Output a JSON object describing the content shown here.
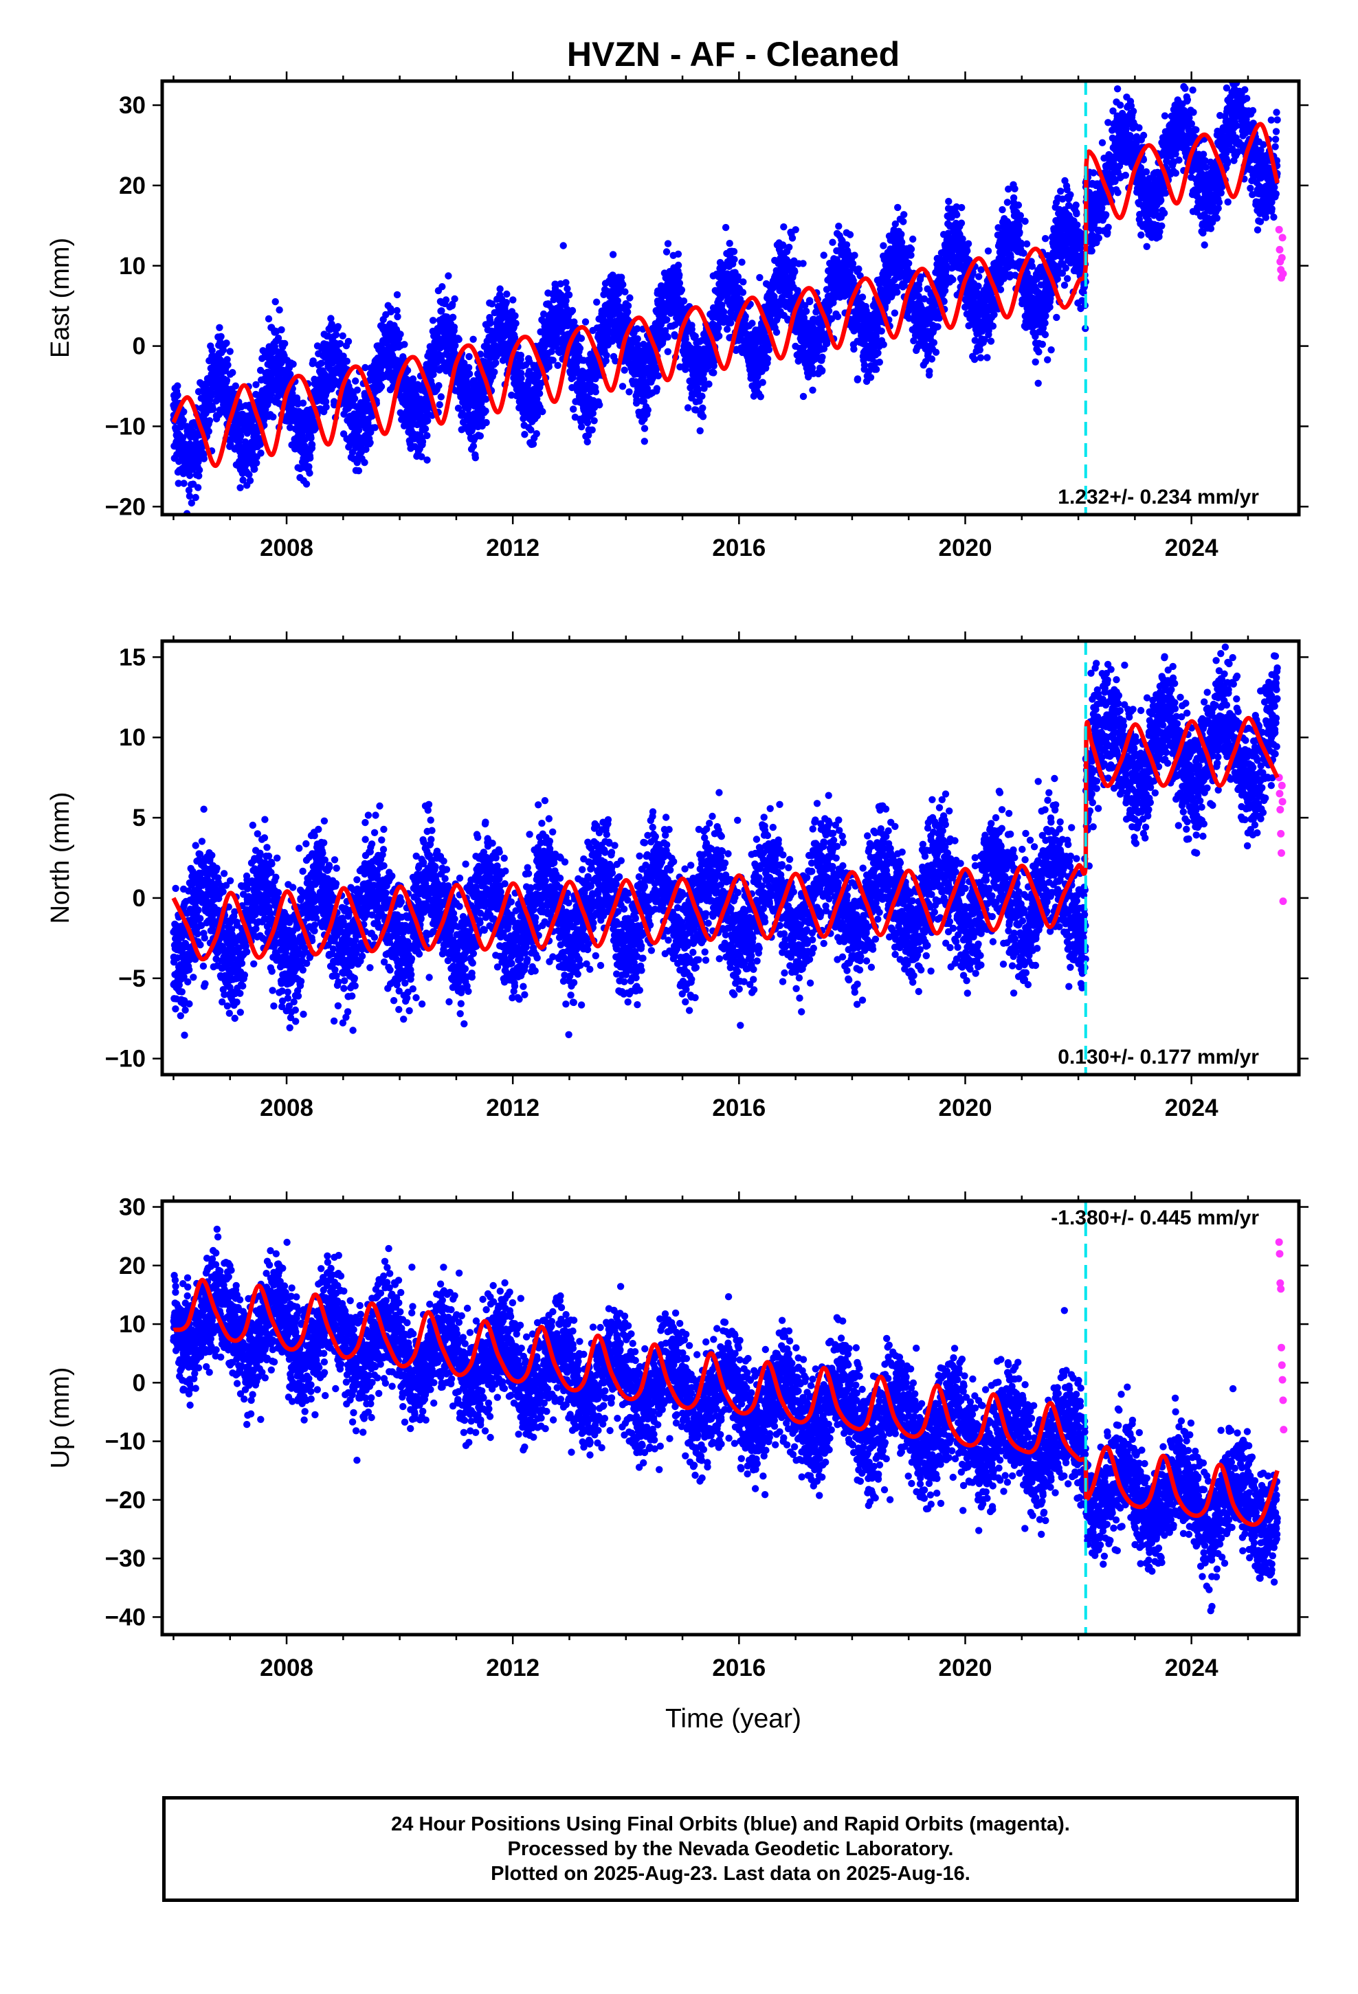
{
  "title": "HVZN  - AF - Cleaned",
  "xlabel": "Time (year)",
  "colors": {
    "final": "#0000ff",
    "rapid": "#ff33ff",
    "model": "#ff0000",
    "offset": "#00e5ee",
    "frame": "#000000"
  },
  "footer": {
    "line1": "24 Hour Positions Using Final Orbits (blue) and Rapid Orbits (magenta).",
    "line2": "Processed by the Nevada Geodetic Laboratory.",
    "line3": "Plotted on 2025-Aug-23. Last data on 2025-Aug-16."
  },
  "chart_data": [
    {
      "type": "scatter",
      "ylabel": "East (mm)",
      "rate_label": "1.232+/- 0.234 mm/yr",
      "xlim": [
        2005.8,
        2025.9
      ],
      "ylim": [
        -21,
        33
      ],
      "x_ticks": [
        2008,
        2012,
        2016,
        2020,
        2024
      ],
      "x_minor_ticks": [
        2006,
        2007,
        2008,
        2009,
        2010,
        2011,
        2012,
        2013,
        2014,
        2015,
        2016,
        2017,
        2018,
        2019,
        2020,
        2021,
        2022,
        2023,
        2024,
        2025
      ],
      "y_ticks": [
        -20,
        -10,
        0,
        10,
        20,
        30
      ],
      "offset_epoch": 2022.13,
      "series": [
        {
          "name": "Final Orbits (blue)",
          "kind": "points",
          "color": "#0000ff",
          "trend": {
            "start": 2006.0,
            "end": 2025.52,
            "value_at_2006": -9.5,
            "rate": 1.232,
            "annual_amp": 5.0,
            "phase": 0.55,
            "scatter": 2.6,
            "jump_epoch": 2022.13,
            "jump": 10.5
          }
        },
        {
          "name": "Rapid Orbits (magenta)",
          "kind": "points",
          "color": "#ff33ff",
          "x": [
            2025.55,
            2025.56,
            2025.57,
            2025.58,
            2025.59,
            2025.6,
            2025.61,
            2025.62
          ],
          "y": [
            14.5,
            12.0,
            10.5,
            9.5,
            8.5,
            11.0,
            13.5,
            9.0
          ]
        },
        {
          "name": "Model",
          "kind": "line",
          "color": "#ff0000",
          "x": [
            2006.0,
            2006.25,
            2006.5,
            2006.75,
            2007.0,
            2007.25,
            2007.5,
            2007.75,
            2008.0,
            2008.25,
            2008.5,
            2008.75,
            2009.0,
            2009.25,
            2009.5,
            2009.75,
            2010.0,
            2010.25,
            2010.5,
            2010.75,
            2011.0,
            2011.25,
            2011.5,
            2011.75,
            2012.0,
            2012.25,
            2012.5,
            2012.75,
            2013.0,
            2013.25,
            2013.5,
            2013.75,
            2014.0,
            2014.25,
            2014.5,
            2014.75,
            2015.0,
            2015.25,
            2015.5,
            2015.75,
            2016.0,
            2016.25,
            2016.5,
            2016.75,
            2017.0,
            2017.25,
            2017.5,
            2017.75,
            2018.0,
            2018.25,
            2018.5,
            2018.75,
            2019.0,
            2019.25,
            2019.5,
            2019.75,
            2020.0,
            2020.25,
            2020.5,
            2020.75,
            2021.0,
            2021.25,
            2021.5,
            2021.75,
            2022.0,
            2022.13,
            2022.14,
            2022.25,
            2022.5,
            2022.75,
            2023.0,
            2023.25,
            2023.5,
            2023.75,
            2024.0,
            2024.25,
            2024.5,
            2024.75,
            2025.0,
            2025.25,
            2025.52
          ],
          "y": [
            -9.5,
            -6.4,
            -10.5,
            -14.9,
            -9.2,
            -4.9,
            -9.1,
            -13.5,
            -5.9,
            -3.8,
            -7.8,
            -12.2,
            -4.9,
            -2.6,
            -6.4,
            -10.9,
            -3.9,
            -1.4,
            -5.1,
            -9.6,
            -2.1,
            0.0,
            -3.9,
            -8.2,
            -1.0,
            1.1,
            -2.5,
            -6.9,
            0.1,
            2.3,
            -1.2,
            -5.5,
            1.2,
            3.5,
            0.0,
            -4.2,
            2.3,
            4.8,
            1.3,
            -2.8,
            3.4,
            6.0,
            2.5,
            -1.5,
            4.6,
            7.2,
            3.8,
            -0.2,
            5.8,
            8.4,
            5.0,
            1.1,
            7.0,
            9.6,
            6.3,
            2.3,
            8.2,
            10.9,
            7.5,
            3.6,
            9.3,
            12.1,
            8.8,
            4.8,
            8.0,
            10.0,
            22.5,
            23.8,
            19.5,
            16.0,
            22.0,
            25.0,
            22.0,
            17.8,
            24.0,
            26.3,
            22.8,
            18.6,
            24.5,
            27.5,
            20.3
          ]
        }
      ]
    },
    {
      "type": "scatter",
      "ylabel": "North (mm)",
      "rate_label": "0.130+/- 0.177 mm/yr",
      "xlim": [
        2005.8,
        2025.9
      ],
      "ylim": [
        -11,
        16
      ],
      "x_ticks": [
        2008,
        2012,
        2016,
        2020,
        2024
      ],
      "x_minor_ticks": [
        2006,
        2007,
        2008,
        2009,
        2010,
        2011,
        2012,
        2013,
        2014,
        2015,
        2016,
        2017,
        2018,
        2019,
        2020,
        2021,
        2022,
        2023,
        2024,
        2025
      ],
      "y_ticks": [
        -10,
        -5,
        0,
        5,
        10,
        15
      ],
      "offset_epoch": 2022.13,
      "series": [
        {
          "name": "Final Orbits (blue)",
          "kind": "points",
          "color": "#0000ff",
          "trend": {
            "start": 2006.0,
            "end": 2025.52,
            "value_at_2006": -1.8,
            "rate": 0.13,
            "annual_amp": 2.2,
            "phase": 0.3,
            "scatter": 1.8,
            "jump_epoch": 2022.13,
            "jump": 8.6
          }
        },
        {
          "name": "Rapid Orbits (magenta)",
          "kind": "points",
          "color": "#ff33ff",
          "x": [
            2025.55,
            2025.56,
            2025.57,
            2025.58,
            2025.59,
            2025.6,
            2025.61,
            2025.62
          ],
          "y": [
            7.5,
            6.5,
            5.5,
            4.0,
            2.8,
            7.0,
            6.0,
            -0.2
          ]
        },
        {
          "name": "Model",
          "kind": "line",
          "color": "#ff0000",
          "x": [
            2006.0,
            2006.25,
            2006.5,
            2006.75,
            2007.0,
            2007.25,
            2007.5,
            2007.75,
            2008.0,
            2008.25,
            2008.5,
            2008.75,
            2009.0,
            2009.25,
            2009.5,
            2009.75,
            2010.0,
            2010.25,
            2010.5,
            2010.75,
            2011.0,
            2011.25,
            2011.5,
            2011.75,
            2012.0,
            2012.25,
            2012.5,
            2012.75,
            2013.0,
            2013.25,
            2013.5,
            2013.75,
            2014.0,
            2014.25,
            2014.5,
            2014.75,
            2015.0,
            2015.25,
            2015.5,
            2015.75,
            2016.0,
            2016.25,
            2016.5,
            2016.75,
            2017.0,
            2017.25,
            2017.5,
            2017.75,
            2018.0,
            2018.25,
            2018.5,
            2018.75,
            2019.0,
            2019.25,
            2019.5,
            2019.75,
            2020.0,
            2020.25,
            2020.5,
            2020.75,
            2021.0,
            2021.25,
            2021.5,
            2021.75,
            2022.0,
            2022.13,
            2022.14,
            2022.25,
            2022.5,
            2022.75,
            2023.0,
            2023.25,
            2023.5,
            2023.75,
            2024.0,
            2024.25,
            2024.5,
            2024.75,
            2025.0,
            2025.25,
            2025.52
          ],
          "y": [
            0.0,
            -1.8,
            -3.8,
            -2.5,
            0.3,
            -1.6,
            -3.7,
            -2.2,
            0.4,
            -1.5,
            -3.5,
            -2.0,
            0.6,
            -1.3,
            -3.3,
            -1.8,
            0.7,
            -1.1,
            -3.2,
            -1.6,
            0.8,
            -1.0,
            -3.2,
            -1.4,
            0.9,
            -1.0,
            -3.1,
            -1.2,
            1.0,
            -0.9,
            -3.0,
            -1.0,
            1.1,
            -0.8,
            -2.8,
            -0.8,
            1.2,
            -0.8,
            -2.6,
            -0.6,
            1.4,
            -0.5,
            -2.5,
            -0.5,
            1.5,
            -0.4,
            -2.4,
            -0.3,
            1.6,
            -0.3,
            -2.3,
            -0.2,
            1.7,
            -0.2,
            -2.2,
            -0.1,
            1.8,
            0.0,
            -2.0,
            0.0,
            2.0,
            0.2,
            -1.8,
            0.3,
            2.0,
            2.1,
            10.5,
            9.5,
            7.0,
            8.5,
            10.8,
            9.0,
            7.0,
            8.8,
            11.0,
            9.2,
            7.0,
            9.0,
            11.2,
            9.5,
            7.5
          ]
        }
      ]
    },
    {
      "type": "scatter",
      "ylabel": "Up (mm)",
      "rate_label": "-1.380+/- 0.445 mm/yr",
      "xlim": [
        2005.8,
        2025.9
      ],
      "ylim": [
        -43,
        31
      ],
      "x_ticks": [
        2008,
        2012,
        2016,
        2020,
        2024
      ],
      "x_minor_ticks": [
        2006,
        2007,
        2008,
        2009,
        2010,
        2011,
        2012,
        2013,
        2014,
        2015,
        2016,
        2017,
        2018,
        2019,
        2020,
        2021,
        2022,
        2023,
        2024,
        2025
      ],
      "y_ticks": [
        -40,
        -30,
        -20,
        -10,
        0,
        10,
        20,
        30
      ],
      "offset_epoch": 2022.13,
      "series": [
        {
          "name": "Final Orbits (blue)",
          "kind": "points",
          "color": "#0000ff",
          "trend": {
            "start": 2006.0,
            "end": 2025.52,
            "value_at_2006": 11.0,
            "rate": -1.38,
            "annual_amp": 4.5,
            "phase": 0.55,
            "scatter": 4.5,
            "jump_epoch": 2022.13,
            "jump": -6.0
          }
        },
        {
          "name": "Rapid Orbits (magenta)",
          "kind": "points",
          "color": "#ff33ff",
          "x": [
            2025.55,
            2025.56,
            2025.57,
            2025.58,
            2025.59,
            2025.6,
            2025.61,
            2025.62,
            2025.63
          ],
          "y": [
            24.0,
            22.0,
            17.0,
            16.0,
            6.0,
            3.0,
            0.5,
            -3.0,
            -8.0
          ]
        },
        {
          "name": "Model",
          "kind": "line",
          "color": "#ff0000",
          "x": [
            2006.0,
            2006.25,
            2006.5,
            2006.75,
            2007.0,
            2007.25,
            2007.5,
            2007.75,
            2008.0,
            2008.25,
            2008.5,
            2008.75,
            2009.0,
            2009.25,
            2009.5,
            2009.75,
            2010.0,
            2010.25,
            2010.5,
            2010.75,
            2011.0,
            2011.25,
            2011.5,
            2011.75,
            2012.0,
            2012.25,
            2012.5,
            2012.75,
            2013.0,
            2013.25,
            2013.5,
            2013.75,
            2014.0,
            2014.25,
            2014.5,
            2014.75,
            2015.0,
            2015.25,
            2015.5,
            2015.75,
            2016.0,
            2016.25,
            2016.5,
            2016.75,
            2017.0,
            2017.25,
            2017.5,
            2017.75,
            2018.0,
            2018.25,
            2018.5,
            2018.75,
            2019.0,
            2019.25,
            2019.5,
            2019.75,
            2020.0,
            2020.25,
            2020.5,
            2020.75,
            2021.0,
            2021.25,
            2021.5,
            2021.75,
            2022.0,
            2022.13,
            2022.14,
            2022.25,
            2022.5,
            2022.75,
            2023.0,
            2023.25,
            2023.5,
            2023.75,
            2024.0,
            2024.25,
            2024.5,
            2024.75,
            2025.0,
            2025.25,
            2025.52
          ],
          "y": [
            9.0,
            10.0,
            17.5,
            12.0,
            7.5,
            8.5,
            16.5,
            10.5,
            6.0,
            7.0,
            15.0,
            9.0,
            4.5,
            6.0,
            13.5,
            7.5,
            3.0,
            4.5,
            12.0,
            6.0,
            1.5,
            3.0,
            10.5,
            4.5,
            0.5,
            1.5,
            9.5,
            3.0,
            -1.0,
            0.0,
            8.0,
            1.5,
            -2.5,
            -1.5,
            6.5,
            0.0,
            -4.0,
            -3.0,
            5.0,
            -1.5,
            -5.0,
            -4.0,
            3.5,
            -3.0,
            -6.5,
            -5.5,
            2.5,
            -4.5,
            -7.5,
            -7.0,
            1.0,
            -6.0,
            -9.0,
            -8.0,
            -0.5,
            -7.5,
            -10.5,
            -9.5,
            -2.0,
            -9.0,
            -11.5,
            -11.0,
            -3.5,
            -10.0,
            -13.0,
            -13.5,
            -19.5,
            -18.0,
            -11.0,
            -18.0,
            -21.0,
            -20.0,
            -12.5,
            -19.5,
            -22.5,
            -21.5,
            -14.0,
            -21.0,
            -24.0,
            -23.0,
            -15.0
          ]
        }
      ]
    }
  ]
}
